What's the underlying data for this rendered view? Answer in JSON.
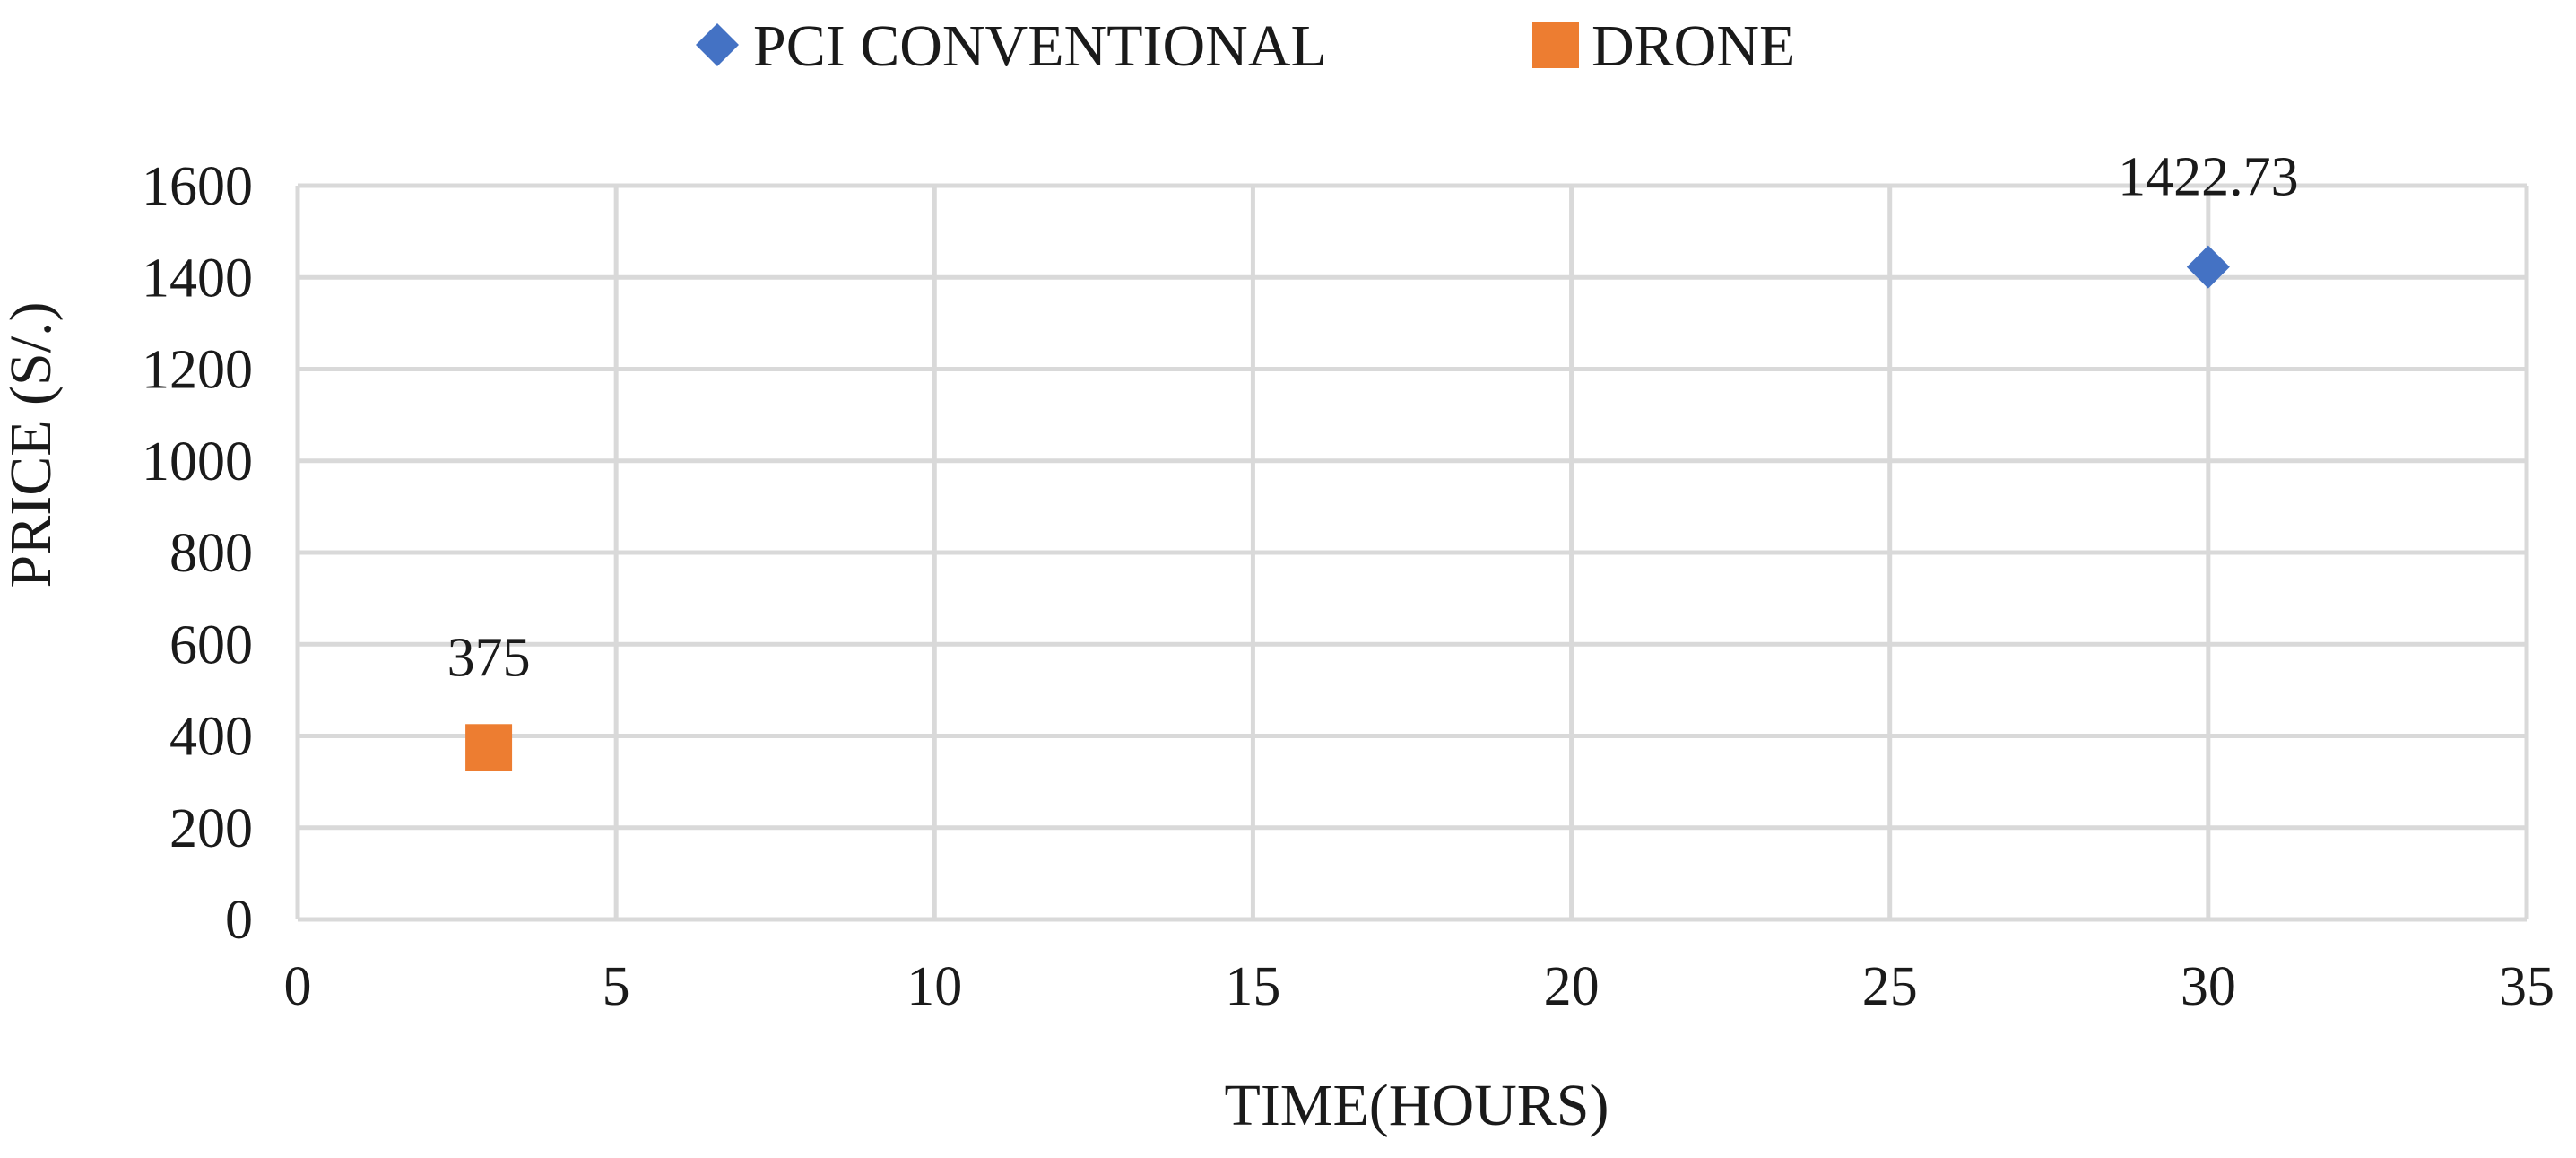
{
  "chart_data": {
    "type": "scatter",
    "title": "",
    "xlabel": "TIME(HOURS)",
    "ylabel": "PRICE (S/.)",
    "xlim": [
      0,
      35
    ],
    "ylim": [
      0,
      1600
    ],
    "xticks": [
      0,
      5,
      10,
      15,
      20,
      25,
      30,
      35
    ],
    "yticks": [
      0,
      200,
      400,
      600,
      800,
      1000,
      1200,
      1400,
      1600
    ],
    "grid": true,
    "legend_position": "top-center",
    "series": [
      {
        "name": "PCI CONVENTIONAL",
        "marker": "diamond",
        "color": "#4472c4",
        "points": [
          {
            "x": 30,
            "y": 1422.73,
            "label": "1422.73"
          }
        ]
      },
      {
        "name": "DRONE",
        "marker": "square",
        "color": "#ed7d31",
        "points": [
          {
            "x": 3,
            "y": 375,
            "label": "375"
          }
        ]
      }
    ]
  }
}
